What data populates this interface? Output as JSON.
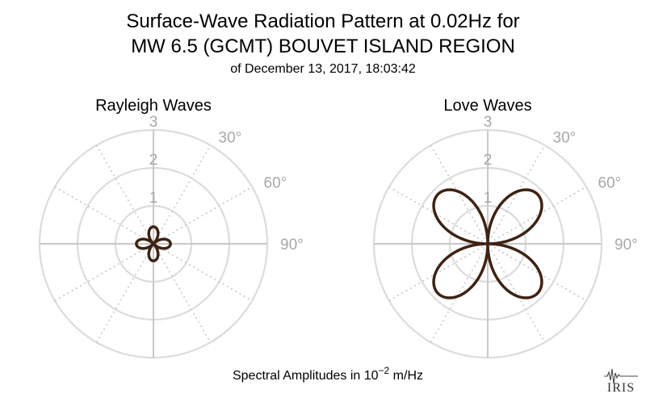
{
  "header": {
    "title_line1": "Surface-Wave Radiation Pattern at 0.02Hz for",
    "title_line2": "MW 6.5 (GCMT) BOUVET ISLAND REGION",
    "subtitle": "of December 13, 2017, 18:03:42"
  },
  "footer": {
    "amplitude_label_prefix": "Spectral Amplitudes in 10",
    "amplitude_label_exp": "−2",
    "amplitude_label_suffix": " m/Hz",
    "logo_text": "IRIS"
  },
  "chart_data": [
    {
      "type": "polar",
      "title": "Rayleigh Waves",
      "radial_ticks": [
        "1",
        "2",
        "3"
      ],
      "rlim": [
        0,
        3
      ],
      "angle_ticks": [
        "30°",
        "60°",
        "90°"
      ],
      "grid": true,
      "color": "#3d2314",
      "pattern": "four-lobe",
      "lobe_azimuths_deg": [
        0,
        90,
        180,
        270
      ],
      "max_amplitude": 0.45,
      "min_amplitude": 0.0
    },
    {
      "type": "polar",
      "title": "Love Waves",
      "radial_ticks": [
        "1",
        "2",
        "3"
      ],
      "rlim": [
        0,
        3
      ],
      "angle_ticks": [
        "30°",
        "60°",
        "90°"
      ],
      "grid": true,
      "color": "#3d2314",
      "pattern": "four-lobe",
      "lobe_azimuths_deg": [
        45,
        135,
        225,
        315
      ],
      "max_amplitude": 1.85,
      "min_amplitude": 0.0
    }
  ]
}
